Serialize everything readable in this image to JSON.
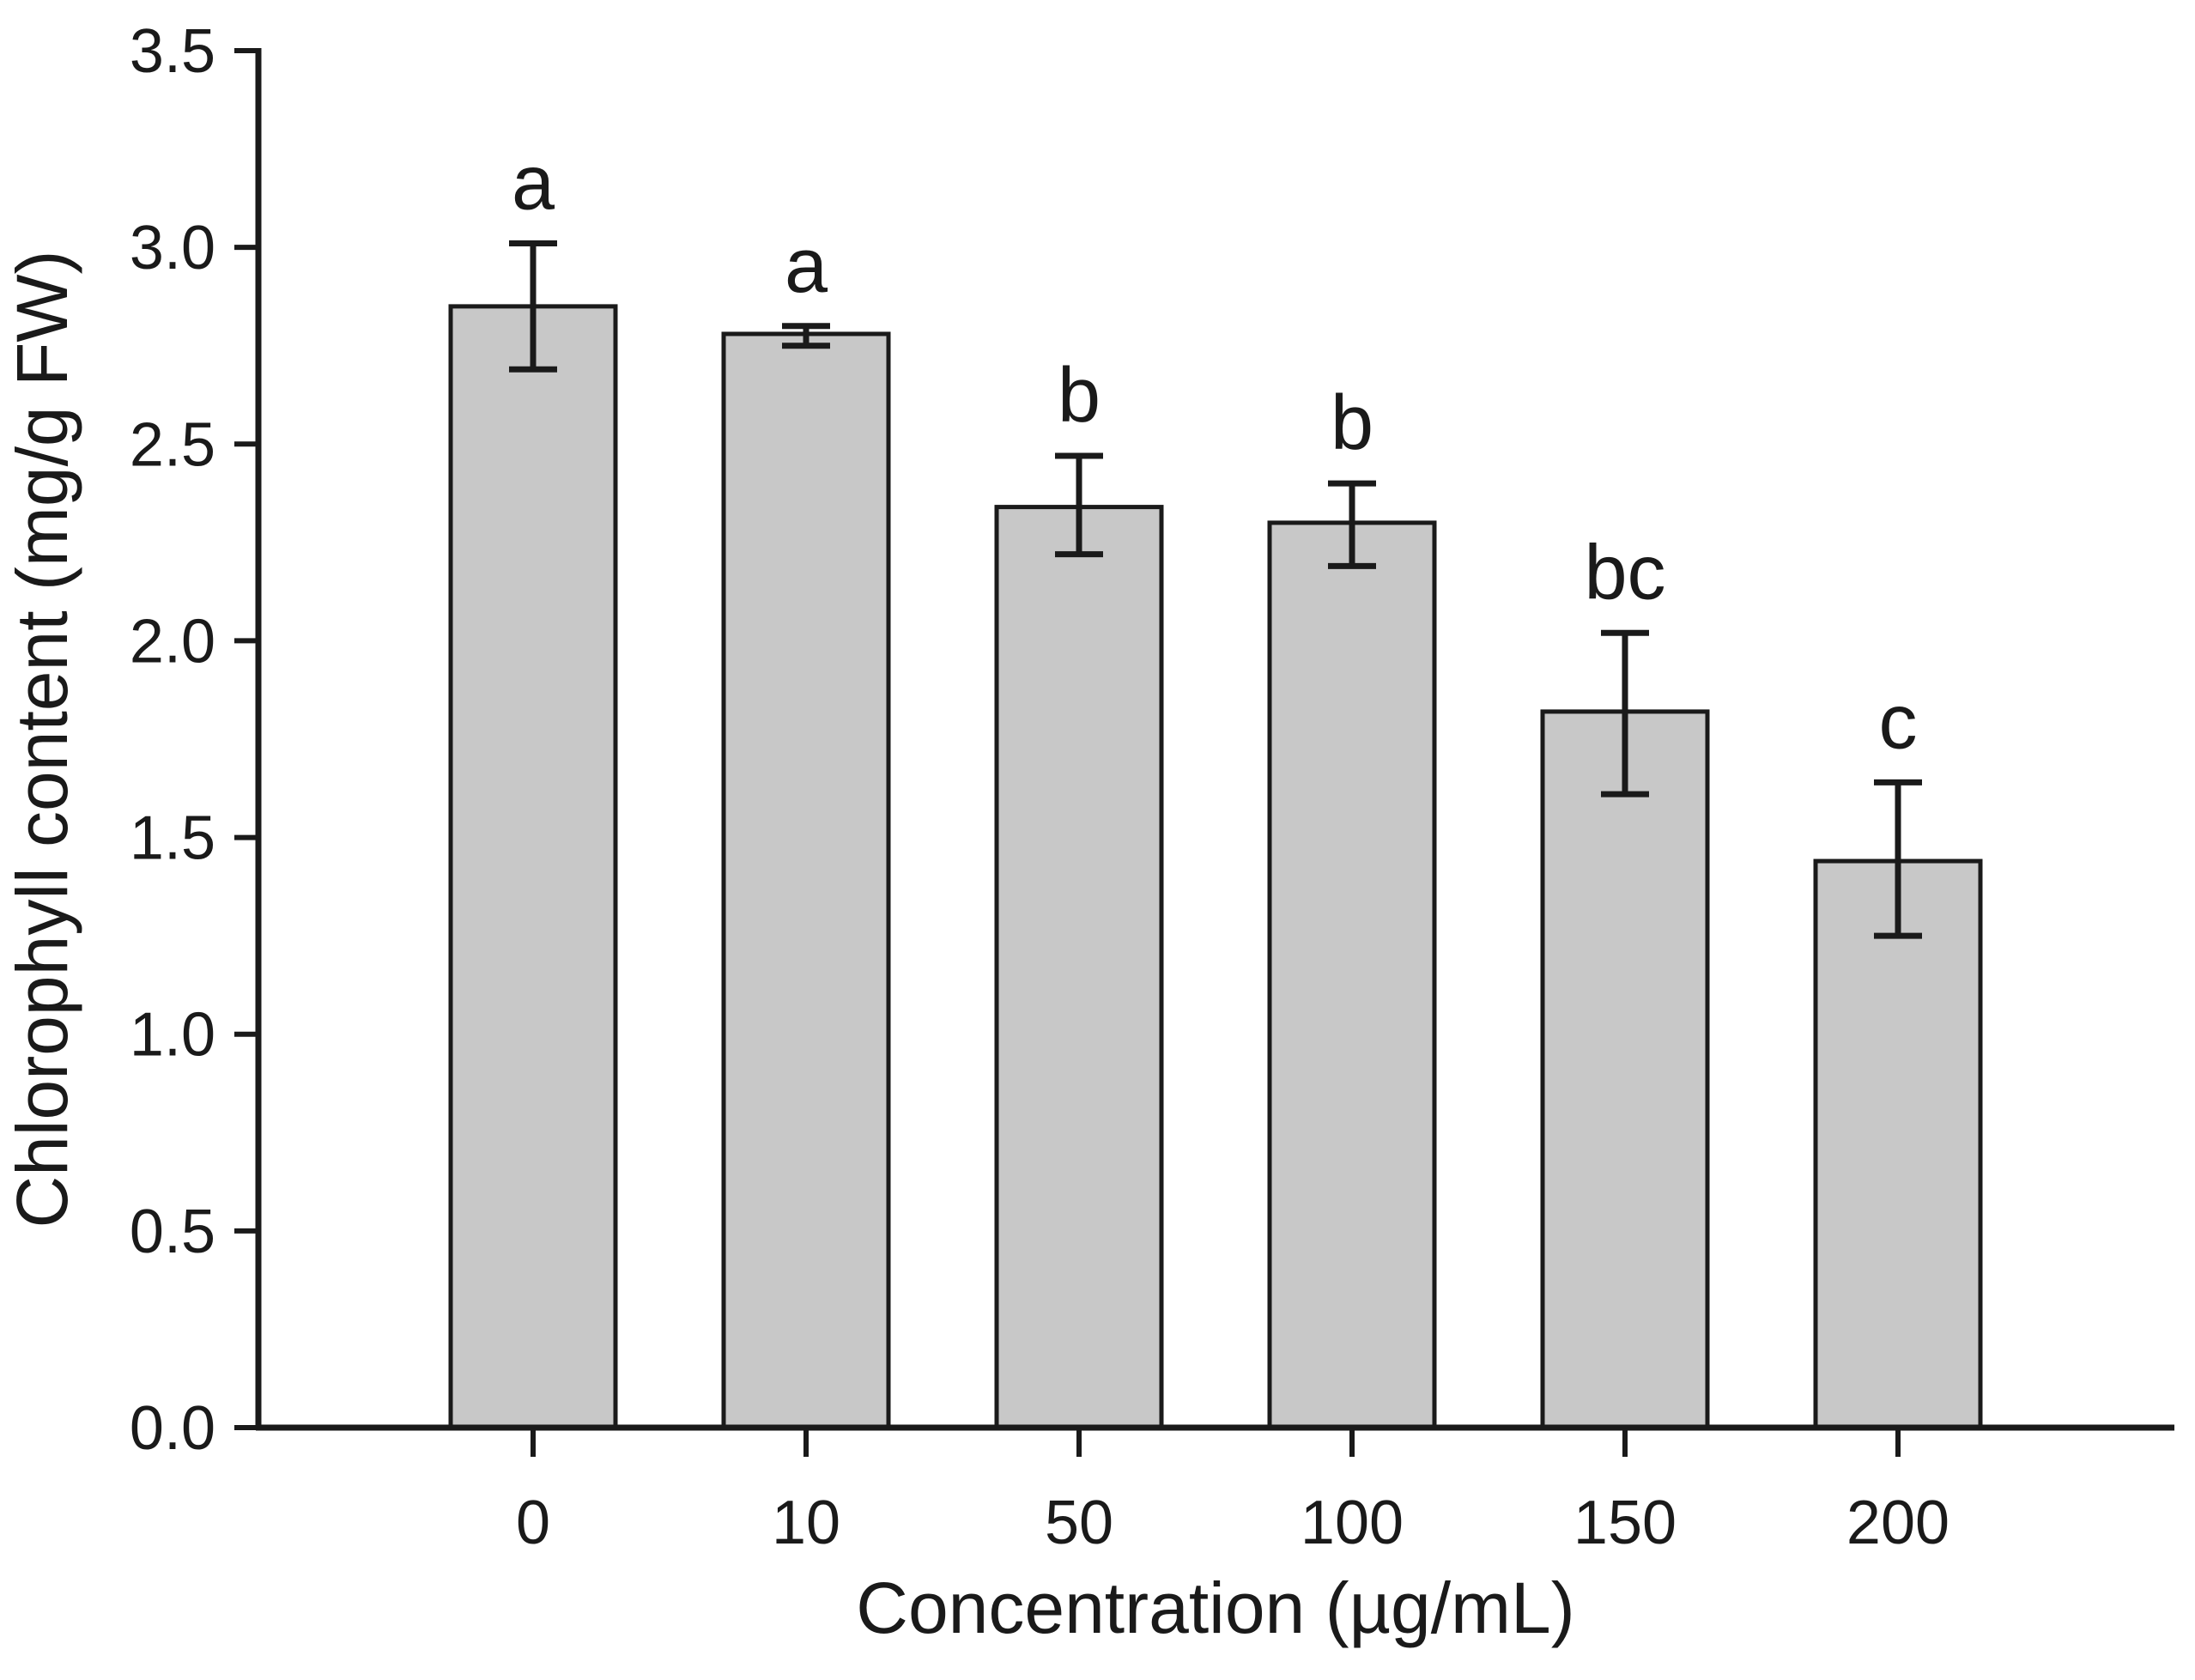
{
  "chart_data": {
    "type": "bar",
    "title": "",
    "xlabel": "Concentration (µg/mL)",
    "ylabel": "Chlorophyll content (mg/g FW)",
    "categories": [
      "0",
      "10",
      "50",
      "100",
      "150",
      "200"
    ],
    "values": [
      2.85,
      2.78,
      2.34,
      2.3,
      1.82,
      1.44
    ],
    "error_upper": [
      0.16,
      0.02,
      0.13,
      0.1,
      0.2,
      0.2
    ],
    "error_lower": [
      0.16,
      0.03,
      0.12,
      0.11,
      0.21,
      0.19
    ],
    "sig_letters": [
      "a",
      "a",
      "b",
      "b",
      "bc",
      "c"
    ],
    "yticks": [
      0.0,
      0.5,
      1.0,
      1.5,
      2.0,
      2.5,
      3.0,
      3.5
    ],
    "ytick_labels": [
      "0.0",
      "0.5",
      "1.0",
      "1.5",
      "2.0",
      "2.5",
      "3.0",
      "3.5"
    ],
    "ylim": [
      0.0,
      3.5
    ],
    "grid": false,
    "legend": null,
    "bar_fill_color": "#c8c8c8",
    "bar_edge_color": "#1a1a1a",
    "error_bar_color": "#1a1a1a"
  }
}
